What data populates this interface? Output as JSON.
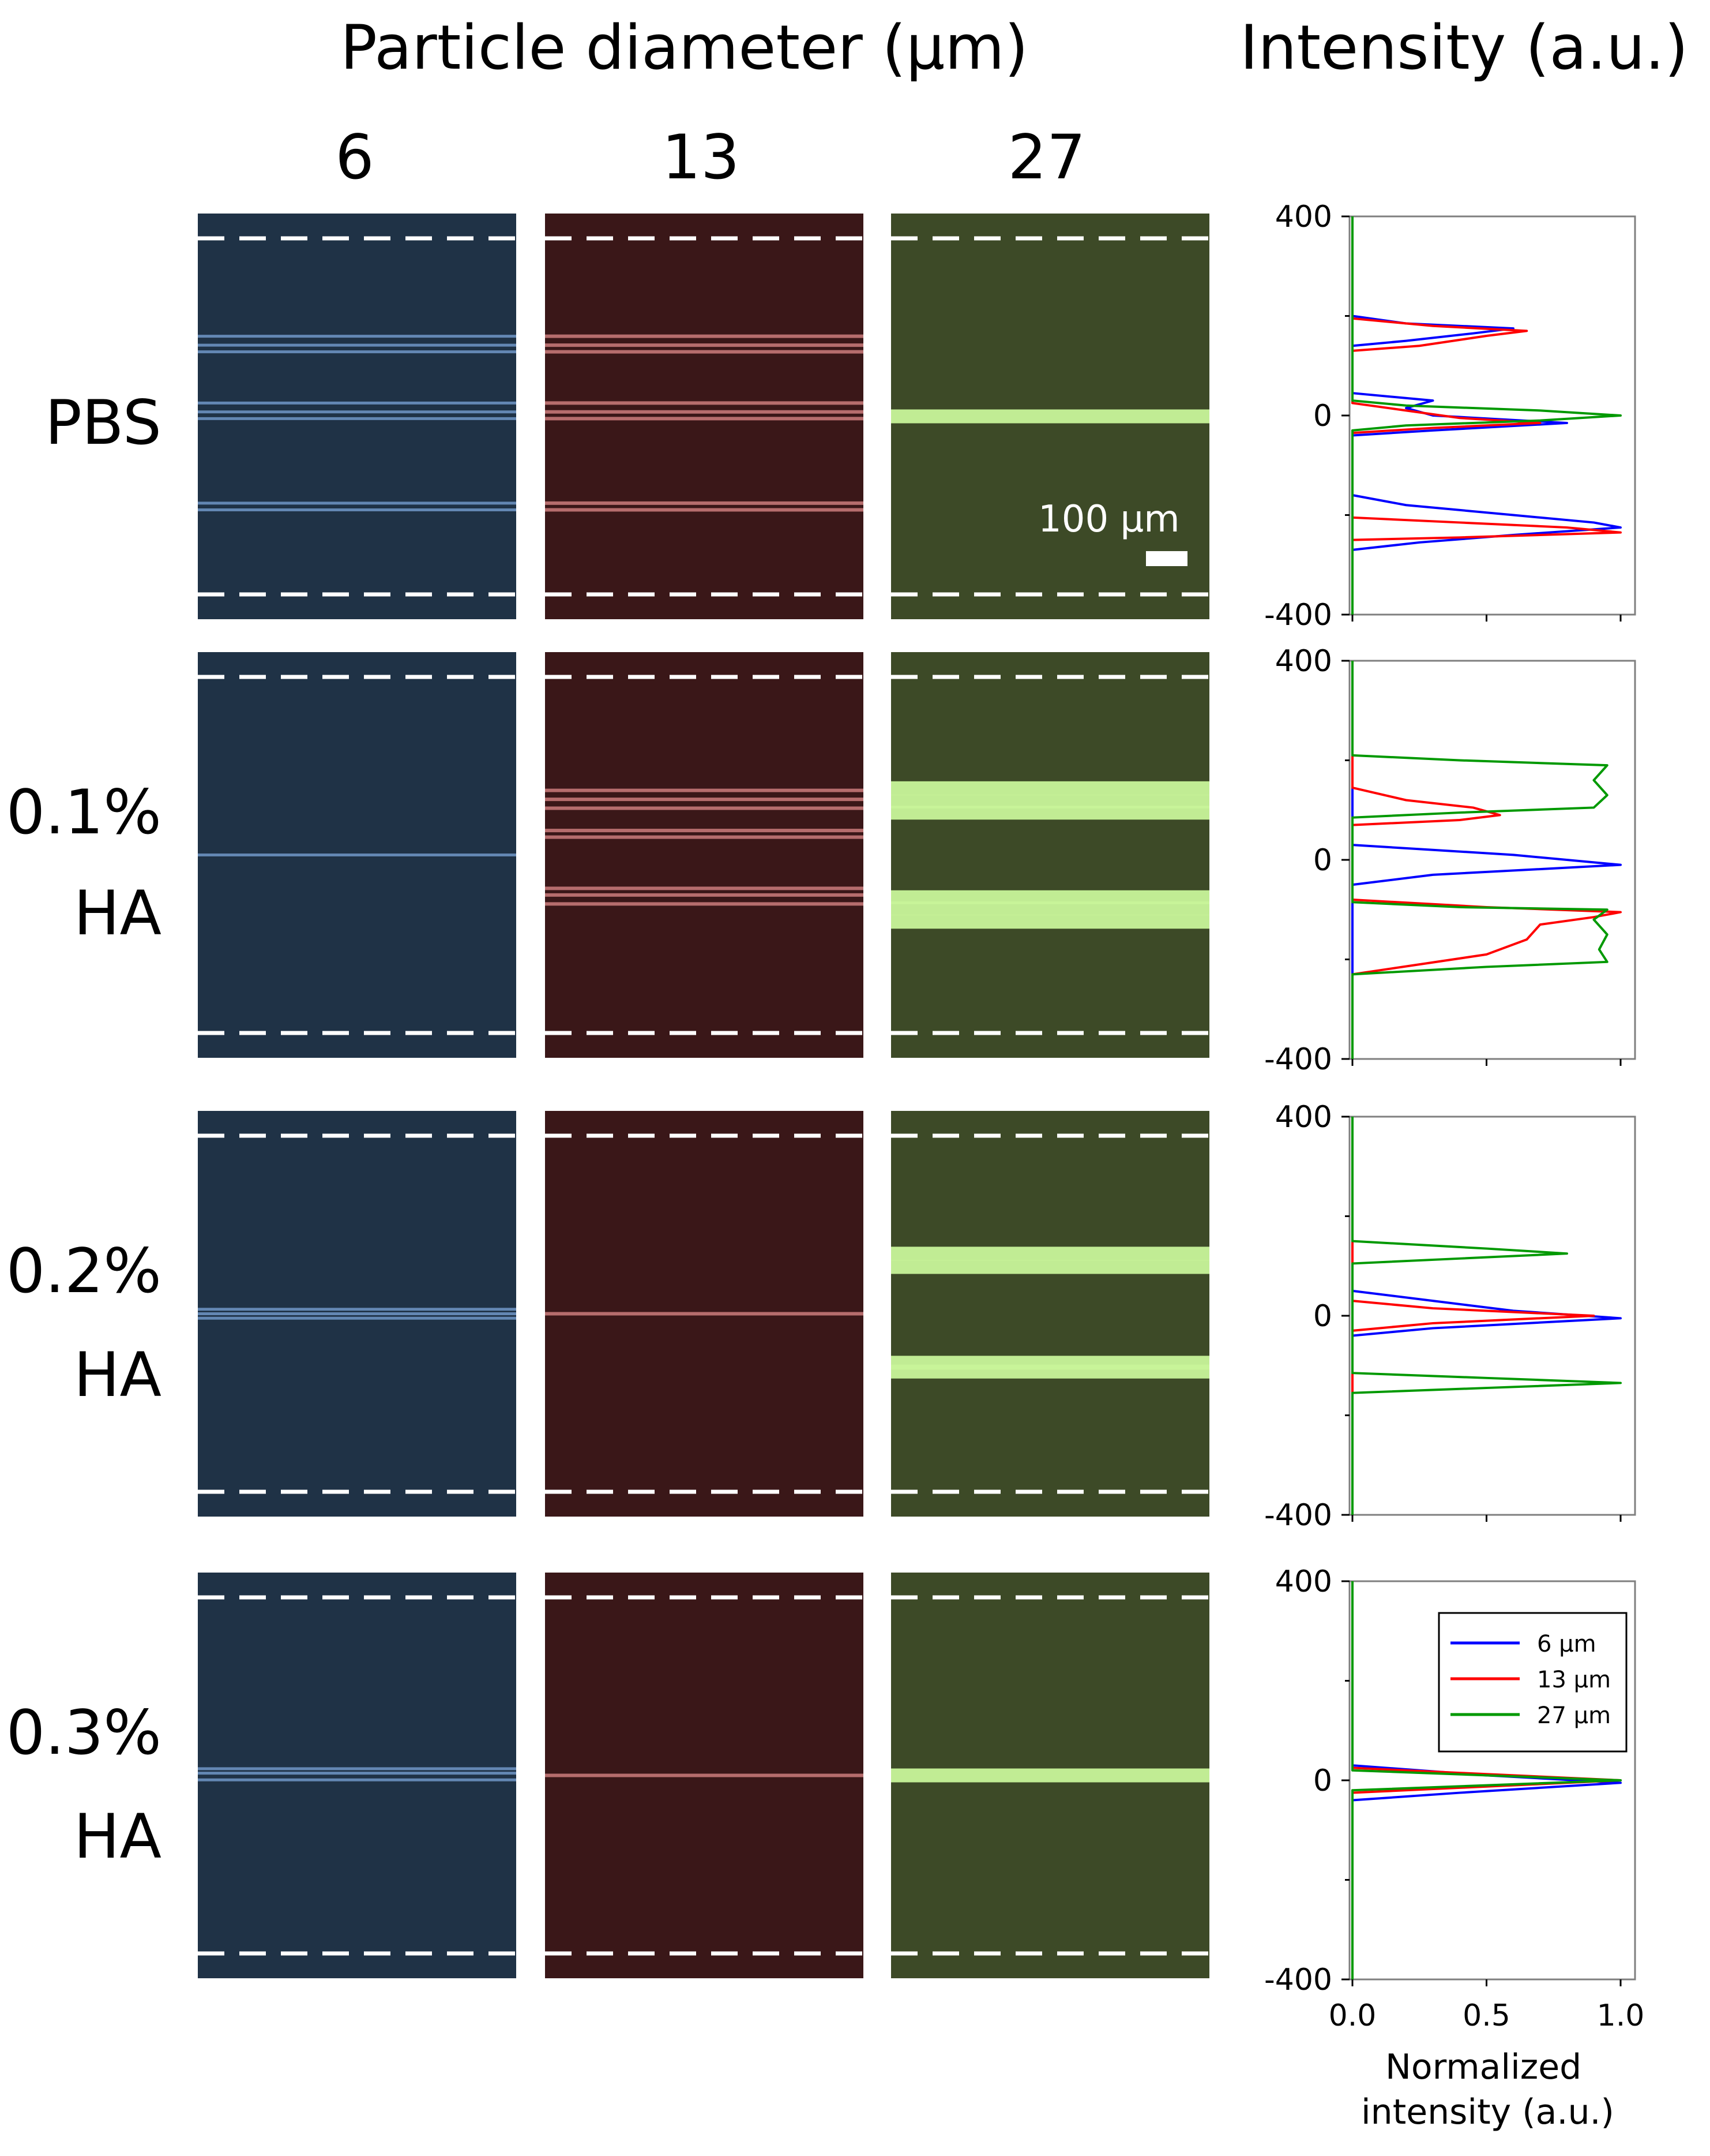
{
  "header": {
    "particle_diameter_title": "Particle diameter (μm)",
    "intensity_title": "Intensity (a.u.)"
  },
  "columns": [
    "6",
    "13",
    "27"
  ],
  "rows": [
    {
      "lines": [
        "PBS"
      ]
    },
    {
      "lines": [
        "0.1%",
        "HA"
      ]
    },
    {
      "lines": [
        "0.2%",
        "HA"
      ]
    },
    {
      "lines": [
        "0.3%",
        "HA"
      ]
    }
  ],
  "scale_bar_label": "100 μm",
  "colors": {
    "blue_panel": "#1f3246",
    "red_panel": "#3a1718",
    "green_panel": "#3d4a27",
    "blue_stream": "#7aa4d8",
    "red_stream": "#e08a8a",
    "green_stream": "#c9f59a",
    "series_6": "#0000ff",
    "series_13": "#ff0000",
    "series_27": "#009900"
  },
  "micrographs": [
    {
      "condition": "PBS",
      "streams_6": [
        -210,
        -195,
        -5,
        10,
        30,
        145,
        160,
        180
      ],
      "streams_13": [
        -210,
        -195,
        -5,
        10,
        30,
        145,
        160,
        180
      ],
      "streams_27": [
        0
      ]
    },
    {
      "condition": "0.1% HA",
      "streams_6": [
        0
      ],
      "streams_13": [
        -110,
        -90,
        -75,
        40,
        55,
        105,
        125,
        145
      ],
      "streams_27": [
        -150,
        -120,
        -95,
        95,
        120,
        150
      ]
    },
    {
      "condition": "0.2% HA",
      "streams_6": [
        -10,
        0,
        10
      ],
      "streams_13": [
        0
      ],
      "streams_27": [
        -130,
        -110,
        105,
        135
      ]
    },
    {
      "condition": "0.3% HA",
      "streams_6": [
        -10,
        5,
        15
      ],
      "streams_13": [
        0
      ],
      "streams_27": [
        0
      ]
    }
  ],
  "chart_data": [
    {
      "type": "line",
      "title": "PBS",
      "orientation": "vertical-profile",
      "xlim": [
        0,
        1.0
      ],
      "ylim": [
        -400,
        400
      ],
      "yticks": [
        "400",
        "0",
        "-400"
      ],
      "series": [
        {
          "name": "6 μm",
          "points": [
            [
              0,
              -400
            ],
            [
              0,
              -270
            ],
            [
              0.25,
              -255
            ],
            [
              0.6,
              -240
            ],
            [
              1.0,
              -225
            ],
            [
              0.9,
              -215
            ],
            [
              0.6,
              -200
            ],
            [
              0.2,
              -180
            ],
            [
              0,
              -160
            ],
            [
              0,
              -40
            ],
            [
              0.3,
              -30
            ],
            [
              0.8,
              -15
            ],
            [
              0.3,
              0
            ],
            [
              0.2,
              15
            ],
            [
              0.3,
              30
            ],
            [
              0,
              45
            ],
            [
              0,
              140
            ],
            [
              0.2,
              150
            ],
            [
              0.45,
              165
            ],
            [
              0.6,
              175
            ],
            [
              0.2,
              185
            ],
            [
              0,
              200
            ],
            [
              0,
              400
            ]
          ]
        },
        {
          "name": "13 μm",
          "points": [
            [
              0,
              -400
            ],
            [
              0,
              -250
            ],
            [
              0.4,
              -245
            ],
            [
              1.0,
              -235
            ],
            [
              0.8,
              -225
            ],
            [
              0.4,
              -215
            ],
            [
              0,
              -205
            ],
            [
              0,
              -35
            ],
            [
              0.3,
              -25
            ],
            [
              0.7,
              -15
            ],
            [
              0.4,
              -5
            ],
            [
              0.2,
              10
            ],
            [
              0,
              25
            ],
            [
              0,
              130
            ],
            [
              0.25,
              140
            ],
            [
              0.5,
              160
            ],
            [
              0.65,
              170
            ],
            [
              0.3,
              180
            ],
            [
              0,
              195
            ],
            [
              0,
              400
            ]
          ]
        },
        {
          "name": "27 μm",
          "points": [
            [
              0,
              -400
            ],
            [
              0,
              -30
            ],
            [
              0.2,
              -20
            ],
            [
              0.7,
              -10
            ],
            [
              1.0,
              0
            ],
            [
              0.7,
              10
            ],
            [
              0.2,
              20
            ],
            [
              0,
              30
            ],
            [
              0,
              400
            ]
          ]
        }
      ]
    },
    {
      "type": "line",
      "title": "0.1% HA",
      "orientation": "vertical-profile",
      "xlim": [
        0,
        1.0
      ],
      "ylim": [
        -400,
        400
      ],
      "yticks": [
        "400",
        "0",
        "-400"
      ],
      "series": [
        {
          "name": "6 μm",
          "points": [
            [
              0,
              -400
            ],
            [
              0,
              -50
            ],
            [
              0.3,
              -30
            ],
            [
              1.0,
              -10
            ],
            [
              0.6,
              10
            ],
            [
              0.3,
              20
            ],
            [
              0,
              30
            ],
            [
              0,
              400
            ]
          ]
        },
        {
          "name": "13 μm",
          "points": [
            [
              0,
              -400
            ],
            [
              0,
              -230
            ],
            [
              0.25,
              -210
            ],
            [
              0.5,
              -190
            ],
            [
              0.65,
              -160
            ],
            [
              0.7,
              -130
            ],
            [
              0.9,
              -115
            ],
            [
              1.0,
              -105
            ],
            [
              0.5,
              -95
            ],
            [
              0,
              -80
            ],
            [
              0,
              70
            ],
            [
              0.4,
              80
            ],
            [
              0.55,
              90
            ],
            [
              0.45,
              105
            ],
            [
              0.2,
              120
            ],
            [
              0,
              145
            ],
            [
              0,
              400
            ]
          ]
        },
        {
          "name": "27 μm",
          "points": [
            [
              0,
              -400
            ],
            [
              0,
              -230
            ],
            [
              0.5,
              -215
            ],
            [
              0.95,
              -205
            ],
            [
              0.92,
              -180
            ],
            [
              0.95,
              -150
            ],
            [
              0.9,
              -120
            ],
            [
              0.95,
              -100
            ],
            [
              0.4,
              -95
            ],
            [
              0,
              -85
            ],
            [
              0,
              85
            ],
            [
              0.4,
              95
            ],
            [
              0.9,
              105
            ],
            [
              0.95,
              130
            ],
            [
              0.9,
              160
            ],
            [
              0.95,
              190
            ],
            [
              0.4,
              200
            ],
            [
              0,
              210
            ],
            [
              0,
              400
            ]
          ]
        }
      ]
    },
    {
      "type": "line",
      "title": "0.2% HA",
      "orientation": "vertical-profile",
      "xlim": [
        0,
        1.0
      ],
      "ylim": [
        -400,
        400
      ],
      "yticks": [
        "400",
        "0",
        "-400"
      ],
      "series": [
        {
          "name": "6 μm",
          "points": [
            [
              0,
              -400
            ],
            [
              0,
              -40
            ],
            [
              0.3,
              -25
            ],
            [
              1.0,
              -5
            ],
            [
              0.6,
              10
            ],
            [
              0.3,
              30
            ],
            [
              0,
              50
            ],
            [
              0,
              400
            ]
          ]
        },
        {
          "name": "13 μm",
          "points": [
            [
              0,
              -400
            ],
            [
              0,
              -30
            ],
            [
              0.3,
              -15
            ],
            [
              0.9,
              0
            ],
            [
              0.3,
              15
            ],
            [
              0,
              30
            ],
            [
              0,
              400
            ]
          ]
        },
        {
          "name": "27 μm",
          "points": [
            [
              0,
              -400
            ],
            [
              0,
              -155
            ],
            [
              0.5,
              -145
            ],
            [
              1.0,
              -135
            ],
            [
              0.5,
              -125
            ],
            [
              0,
              -115
            ],
            [
              0,
              105
            ],
            [
              0.4,
              115
            ],
            [
              0.8,
              125
            ],
            [
              0.5,
              135
            ],
            [
              0,
              150
            ],
            [
              0,
              400
            ]
          ]
        }
      ]
    },
    {
      "type": "line",
      "title": "0.3% HA",
      "orientation": "vertical-profile",
      "xlim": [
        0,
        1.0
      ],
      "ylim": [
        -400,
        400
      ],
      "xticks": [
        "0.0",
        "0.5",
        "1.0"
      ],
      "yticks": [
        "400",
        "0",
        "-400"
      ],
      "xlabel": "Normalized intensity (a.u.)",
      "legend": "top-right",
      "series": [
        {
          "name": "6 μm",
          "points": [
            [
              0,
              -400
            ],
            [
              0,
              -40
            ],
            [
              0.4,
              -25
            ],
            [
              1.0,
              -5
            ],
            [
              0.5,
              10
            ],
            [
              0,
              30
            ],
            [
              0,
              400
            ]
          ]
        },
        {
          "name": "13 μm",
          "points": [
            [
              0,
              -400
            ],
            [
              0,
              -25
            ],
            [
              0.4,
              -15
            ],
            [
              1.0,
              0
            ],
            [
              0.4,
              15
            ],
            [
              0,
              25
            ],
            [
              0,
              400
            ]
          ]
        },
        {
          "name": "27 μm",
          "points": [
            [
              0,
              -400
            ],
            [
              0,
              -20
            ],
            [
              0.5,
              -10
            ],
            [
              1.0,
              0
            ],
            [
              0.5,
              10
            ],
            [
              0,
              20
            ],
            [
              0,
              400
            ]
          ]
        }
      ]
    }
  ],
  "legend": [
    "6 μm",
    "13 μm",
    "27 μm"
  ],
  "x_axis_label_lines": [
    "Normalized",
    "intensity (a.u.)"
  ]
}
